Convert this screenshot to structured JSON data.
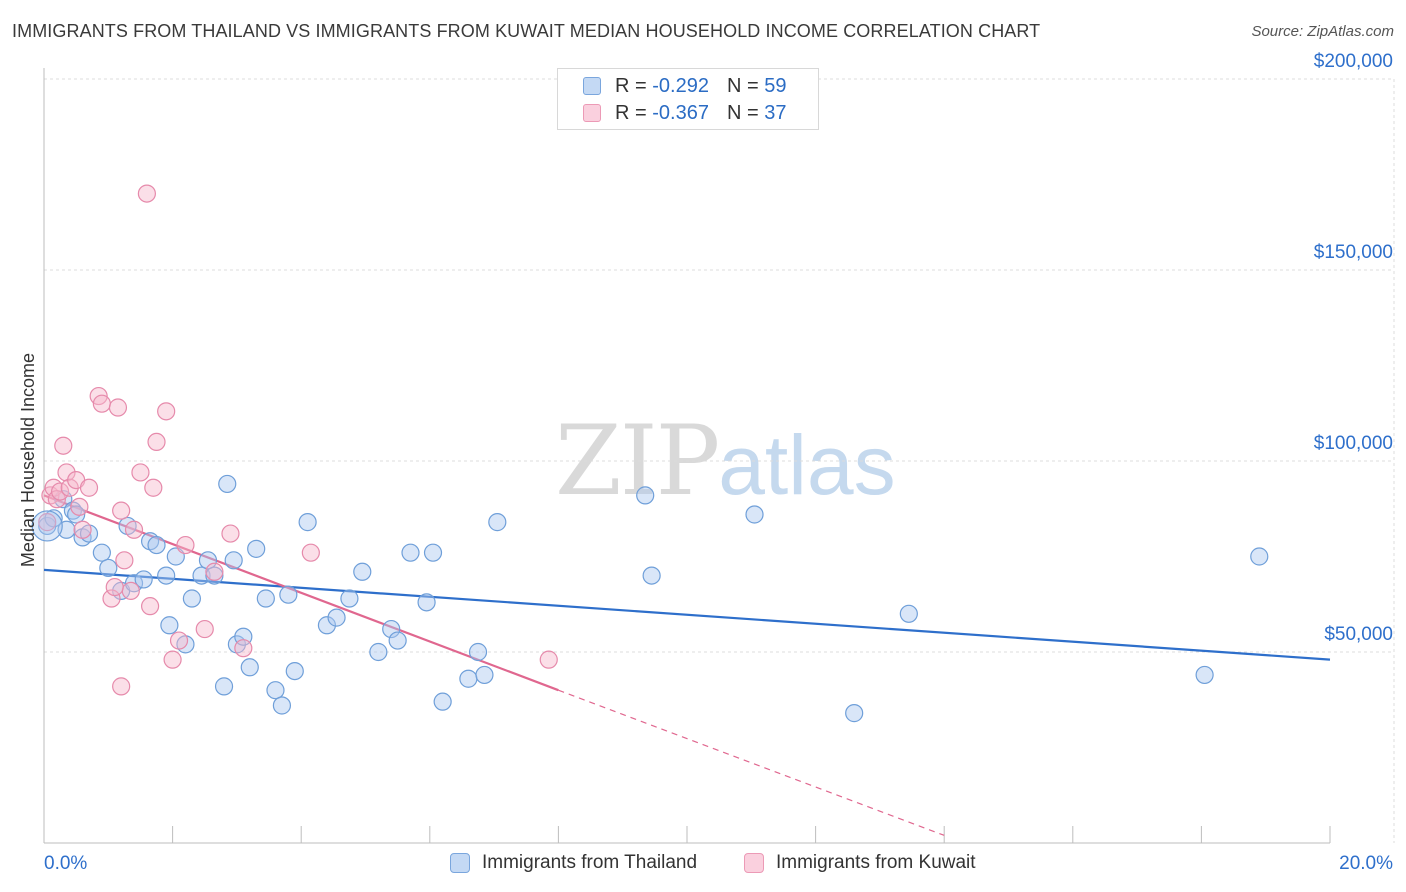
{
  "chart_data": {
    "type": "scatter",
    "title": "IMMIGRANTS FROM THAILAND VS IMMIGRANTS FROM KUWAIT MEDIAN HOUSEHOLD INCOME CORRELATION CHART",
    "source": "Source: ZipAtlas.com",
    "ylabel": "Median Household Income",
    "xlabel": "",
    "xlim": [
      0,
      20
    ],
    "ylim": [
      0,
      210000
    ],
    "x_tick_labels": [
      "0.0%",
      "20.0%"
    ],
    "y_ticks": [
      50000,
      100000,
      150000,
      200000
    ],
    "y_tick_labels": [
      "$50,000",
      "$100,000",
      "$150,000",
      "$200,000"
    ],
    "grid": true,
    "watermark": {
      "zip": "ZIP",
      "atlas": "atlas"
    },
    "legend": [
      {
        "r_label": "R = ",
        "r": "-0.292",
        "n_label": "N = ",
        "n": "59"
      },
      {
        "r_label": "R = ",
        "r": "-0.367",
        "n_label": "N = ",
        "n": "37"
      }
    ],
    "series": [
      {
        "name": "Immigrants from Thailand",
        "fill": "#aac8ef",
        "stroke": "#6f9fd9",
        "line_color": "#2e6fcb",
        "trend": {
          "x0": 0.0,
          "y0": 71500,
          "x1": 20.0,
          "y1": 48000,
          "dashed_to": null
        },
        "points": [
          [
            0.05,
            83000
          ],
          [
            0.15,
            85000
          ],
          [
            0.3,
            90000
          ],
          [
            0.35,
            82000
          ],
          [
            0.45,
            87000
          ],
          [
            0.6,
            80000
          ],
          [
            0.7,
            81000
          ],
          [
            0.9,
            76000
          ],
          [
            1.0,
            72000
          ],
          [
            1.2,
            66000
          ],
          [
            1.3,
            83000
          ],
          [
            1.4,
            68000
          ],
          [
            1.55,
            69000
          ],
          [
            1.65,
            79000
          ],
          [
            1.75,
            78000
          ],
          [
            1.9,
            70000
          ],
          [
            1.95,
            57000
          ],
          [
            2.05,
            75000
          ],
          [
            2.2,
            52000
          ],
          [
            2.3,
            64000
          ],
          [
            2.45,
            70000
          ],
          [
            2.55,
            74000
          ],
          [
            2.65,
            70000
          ],
          [
            2.8,
            41000
          ],
          [
            2.85,
            94000
          ],
          [
            2.95,
            74000
          ],
          [
            3.0,
            52000
          ],
          [
            3.1,
            54000
          ],
          [
            3.2,
            46000
          ],
          [
            3.3,
            77000
          ],
          [
            3.45,
            64000
          ],
          [
            3.6,
            40000
          ],
          [
            3.7,
            36000
          ],
          [
            3.8,
            65000
          ],
          [
            3.9,
            45000
          ],
          [
            4.1,
            84000
          ],
          [
            4.4,
            57000
          ],
          [
            4.55,
            59000
          ],
          [
            4.75,
            64000
          ],
          [
            4.95,
            71000
          ],
          [
            5.2,
            50000
          ],
          [
            5.4,
            56000
          ],
          [
            5.5,
            53000
          ],
          [
            5.7,
            76000
          ],
          [
            5.95,
            63000
          ],
          [
            6.05,
            76000
          ],
          [
            6.2,
            37000
          ],
          [
            6.6,
            43000
          ],
          [
            6.75,
            50000
          ],
          [
            6.85,
            44000
          ],
          [
            7.05,
            84000
          ],
          [
            9.35,
            91000
          ],
          [
            9.45,
            70000
          ],
          [
            11.05,
            86000
          ],
          [
            12.6,
            34000
          ],
          [
            13.45,
            60000
          ],
          [
            18.05,
            44000
          ],
          [
            18.9,
            75000
          ],
          [
            0.5,
            86000
          ]
        ]
      },
      {
        "name": "Immigrants from Kuwait",
        "fill": "#f6b9cd",
        "stroke": "#e68aab",
        "line_color": "#e0678f",
        "trend": {
          "x0": 0.0,
          "y0": 91000,
          "x1": 8.0,
          "y1": 40000,
          "dashed_to": {
            "x": 14.0,
            "y": 2000
          }
        },
        "points": [
          [
            0.05,
            84000
          ],
          [
            0.1,
            91000
          ],
          [
            0.15,
            93000
          ],
          [
            0.2,
            90000
          ],
          [
            0.25,
            92000
          ],
          [
            0.3,
            104000
          ],
          [
            0.35,
            97000
          ],
          [
            0.4,
            93000
          ],
          [
            0.5,
            95000
          ],
          [
            0.55,
            88000
          ],
          [
            0.6,
            82000
          ],
          [
            0.7,
            93000
          ],
          [
            0.85,
            117000
          ],
          [
            0.9,
            115000
          ],
          [
            1.05,
            64000
          ],
          [
            1.15,
            114000
          ],
          [
            1.2,
            87000
          ],
          [
            1.25,
            74000
          ],
          [
            1.35,
            66000
          ],
          [
            1.4,
            82000
          ],
          [
            1.5,
            97000
          ],
          [
            1.6,
            170000
          ],
          [
            1.7,
            93000
          ],
          [
            1.75,
            105000
          ],
          [
            1.9,
            113000
          ],
          [
            2.0,
            48000
          ],
          [
            2.1,
            53000
          ],
          [
            2.2,
            78000
          ],
          [
            2.5,
            56000
          ],
          [
            2.65,
            71000
          ],
          [
            2.9,
            81000
          ],
          [
            3.1,
            51000
          ],
          [
            1.2,
            41000
          ],
          [
            1.1,
            67000
          ],
          [
            4.15,
            76000
          ],
          [
            7.85,
            48000
          ],
          [
            1.65,
            62000
          ]
        ]
      }
    ]
  }
}
